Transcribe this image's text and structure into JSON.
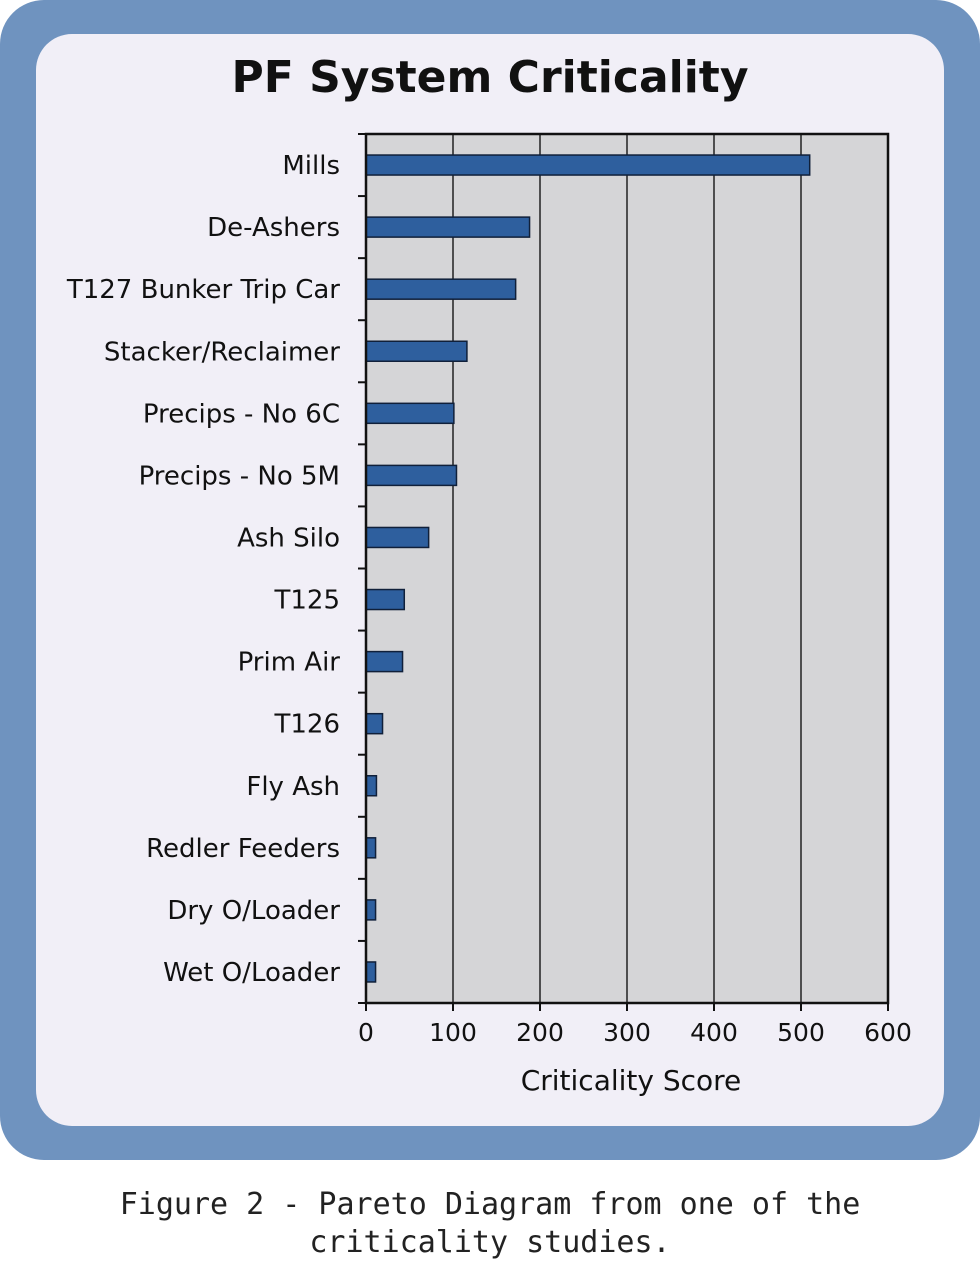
{
  "chart_data": {
    "type": "bar",
    "orientation": "horizontal",
    "title": "PF System Criticality",
    "xlabel": "Criticality Score",
    "ylabel": "",
    "xlim": [
      0,
      600
    ],
    "xticks": [
      0,
      100,
      200,
      300,
      400,
      500,
      600
    ],
    "grid": true,
    "categories": [
      "Mills",
      "De-Ashers",
      "T127  Bunker Trip Car",
      "Stacker/Reclaimer",
      "Precips - No 6C",
      "Precips - No 5M",
      "Ash Silo",
      "T125",
      "Prim Air",
      "T126",
      "Fly Ash",
      "Redler Feeders",
      "Dry O/Loader",
      "Wet O/Loader"
    ],
    "values": [
      510,
      188,
      172,
      116,
      101,
      104,
      72,
      44,
      42,
      19,
      12,
      11,
      11,
      11
    ],
    "bar_color": "#2e5f9e",
    "plot_background": "#d5d5d7"
  },
  "caption": "Figure 2 - Pareto Diagram from one of the criticality studies.",
  "colors": {
    "frame": "#6f93bf",
    "panel": "#f1eff7"
  }
}
